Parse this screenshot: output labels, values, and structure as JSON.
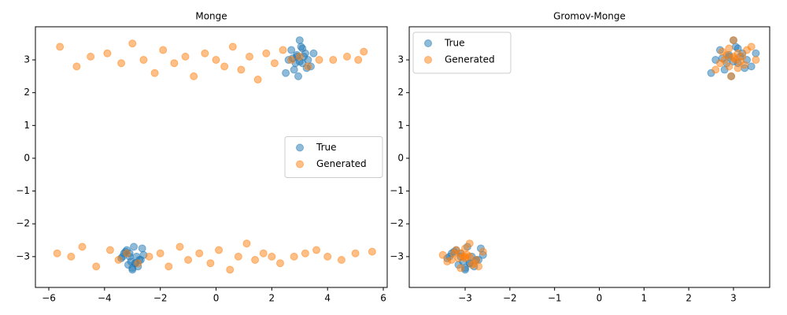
{
  "chart_data": [
    {
      "type": "scatter",
      "title": "Monge",
      "legend": "center right",
      "xlim": [
        -6.48,
        6.14
      ],
      "ylim": [
        -3.94,
        4.01
      ],
      "xticks": [
        {
          "value": -6,
          "label": "−6"
        },
        {
          "value": -4,
          "label": "−4"
        },
        {
          "value": -2,
          "label": "−2"
        },
        0,
        2,
        4,
        6
      ],
      "yticks": [
        {
          "value": -3,
          "label": "−3"
        },
        {
          "value": -2,
          "label": "−2"
        },
        {
          "value": -1,
          "label": "−1"
        },
        0,
        1,
        2,
        3
      ],
      "series": [
        {
          "name": "True",
          "color": "#1f77b4",
          "x": [
            2.9,
            3.1,
            2.7,
            3.3,
            3.0,
            2.8,
            3.2,
            3.4,
            2.6,
            3.05,
            2.95,
            3.15,
            2.85,
            3.5,
            2.5,
            3.1,
            2.75,
            3.25,
            3.0,
            2.9,
            -3.1,
            -2.9,
            -3.3,
            -2.7,
            -3.0,
            -3.2,
            -2.8,
            -3.4,
            -2.6,
            -3.05,
            -2.95,
            -3.15,
            -2.85,
            -3.25,
            -2.75,
            -3.0,
            -3.1,
            -2.9,
            -3.35,
            -2.65
          ],
          "y": [
            3.1,
            2.9,
            3.3,
            3.0,
            3.6,
            2.7,
            3.2,
            2.8,
            3.0,
            3.4,
            2.5,
            3.1,
            2.9,
            3.2,
            2.6,
            3.35,
            3.05,
            2.75,
            2.95,
            3.15,
            -3.0,
            -3.2,
            -2.9,
            -3.1,
            -3.4,
            -2.8,
            -3.3,
            -3.05,
            -2.95,
            -3.15,
            -2.7,
            -3.25,
            -3.0,
            -2.85,
            -3.1,
            -3.35,
            -2.9,
            -3.2,
            -3.0,
            -2.75
          ]
        },
        {
          "name": "Generated",
          "color": "#ff7f0e",
          "x": [
            -5.6,
            -5.0,
            -4.5,
            -3.9,
            -3.4,
            -3.0,
            -2.6,
            -2.2,
            -1.9,
            -1.5,
            -1.1,
            -0.8,
            -0.4,
            0.0,
            0.3,
            0.6,
            0.9,
            1.2,
            1.5,
            1.8,
            2.1,
            2.4,
            2.7,
            3.0,
            3.3,
            3.7,
            4.2,
            4.7,
            5.1,
            5.3,
            -5.7,
            -5.2,
            -4.8,
            -4.3,
            -3.8,
            -3.5,
            -3.2,
            -2.8,
            -2.4,
            -2.0,
            -1.7,
            -1.3,
            -1.0,
            -0.6,
            -0.2,
            0.1,
            0.5,
            0.8,
            1.1,
            1.4,
            1.7,
            2.0,
            2.3,
            2.8,
            3.2,
            3.6,
            4.0,
            4.5,
            5.0,
            5.6
          ],
          "y": [
            3.4,
            2.8,
            3.1,
            3.2,
            2.9,
            3.5,
            3.0,
            2.6,
            3.3,
            2.9,
            3.1,
            2.5,
            3.2,
            3.0,
            2.8,
            3.4,
            2.7,
            3.1,
            2.4,
            3.2,
            2.9,
            3.3,
            3.0,
            3.1,
            2.8,
            3.0,
            3.0,
            3.1,
            3.0,
            3.25,
            -2.9,
            -3.0,
            -2.7,
            -3.3,
            -2.8,
            -3.1,
            -2.9,
            -3.2,
            -3.0,
            -2.9,
            -3.3,
            -2.7,
            -3.1,
            -2.9,
            -3.2,
            -2.8,
            -3.4,
            -3.0,
            -2.6,
            -3.1,
            -2.9,
            -3.0,
            -3.2,
            -3.0,
            -2.9,
            -2.8,
            -3.0,
            -3.1,
            -2.9,
            -2.85
          ]
        }
      ]
    },
    {
      "type": "scatter",
      "title": "Gromov-Monge",
      "legend": "upper left",
      "xlim": [
        -4.25,
        3.81
      ],
      "ylim": [
        -3.94,
        4.01
      ],
      "xticks": [
        {
          "value": -3,
          "label": "−3"
        },
        {
          "value": -2,
          "label": "−2"
        },
        {
          "value": -1,
          "label": "−1"
        },
        0,
        1,
        2,
        3
      ],
      "yticks": [
        {
          "value": -3,
          "label": "−3"
        },
        {
          "value": -2,
          "label": "−2"
        },
        {
          "value": -1,
          "label": "−1"
        },
        0,
        1,
        2,
        3
      ],
      "series": [
        {
          "name": "True",
          "color": "#1f77b4",
          "x": [
            2.9,
            3.1,
            2.7,
            3.3,
            3.0,
            2.8,
            3.2,
            3.4,
            2.6,
            3.05,
            2.95,
            3.15,
            2.85,
            3.5,
            2.5,
            3.1,
            2.75,
            3.25,
            3.0,
            2.9,
            -3.1,
            -2.9,
            -3.3,
            -2.7,
            -3.0,
            -3.2,
            -2.8,
            -3.4,
            -2.6,
            -3.05,
            -2.95,
            -3.15,
            -2.85,
            -3.25,
            -2.75,
            -3.0,
            -3.1,
            -2.9,
            -3.35,
            -2.65
          ],
          "y": [
            3.1,
            2.9,
            3.3,
            3.0,
            3.6,
            2.7,
            3.2,
            2.8,
            3.0,
            3.4,
            2.5,
            3.1,
            2.9,
            3.2,
            2.6,
            3.35,
            3.05,
            2.75,
            2.95,
            3.15,
            -3.0,
            -3.2,
            -2.9,
            -3.1,
            -3.4,
            -2.8,
            -3.3,
            -3.05,
            -2.95,
            -3.15,
            -2.7,
            -3.25,
            -3.0,
            -2.85,
            -3.1,
            -3.35,
            -2.9,
            -3.2,
            -3.0,
            -2.75
          ]
        },
        {
          "name": "Generated",
          "color": "#ff7f0e",
          "x": [
            2.8,
            3.1,
            2.9,
            3.2,
            3.0,
            2.7,
            3.3,
            2.95,
            3.05,
            3.4,
            2.6,
            3.15,
            2.85,
            3.0,
            3.25,
            2.75,
            3.1,
            2.9,
            3.5,
            3.0,
            -3.0,
            -3.2,
            -2.8,
            -3.1,
            -2.9,
            -3.3,
            -2.7,
            -3.05,
            -2.95,
            -3.4,
            -2.6,
            -3.15,
            -2.85,
            -3.0,
            -3.25,
            -2.75,
            -3.1,
            -2.9,
            -3.5,
            -3.0
          ],
          "y": [
            3.0,
            3.2,
            2.8,
            3.1,
            3.6,
            2.9,
            3.3,
            2.5,
            3.0,
            3.4,
            2.7,
            2.95,
            3.15,
            3.05,
            2.85,
            3.25,
            2.75,
            3.35,
            3.0,
            3.1,
            -3.0,
            -2.8,
            -3.2,
            -2.9,
            -2.6,
            -3.1,
            -3.3,
            -3.0,
            -2.95,
            -3.15,
            -2.85,
            -3.05,
            -3.25,
            -2.75,
            -2.9,
            -3.1,
            -3.35,
            -3.0,
            -2.95,
            -3.05
          ]
        }
      ]
    }
  ]
}
